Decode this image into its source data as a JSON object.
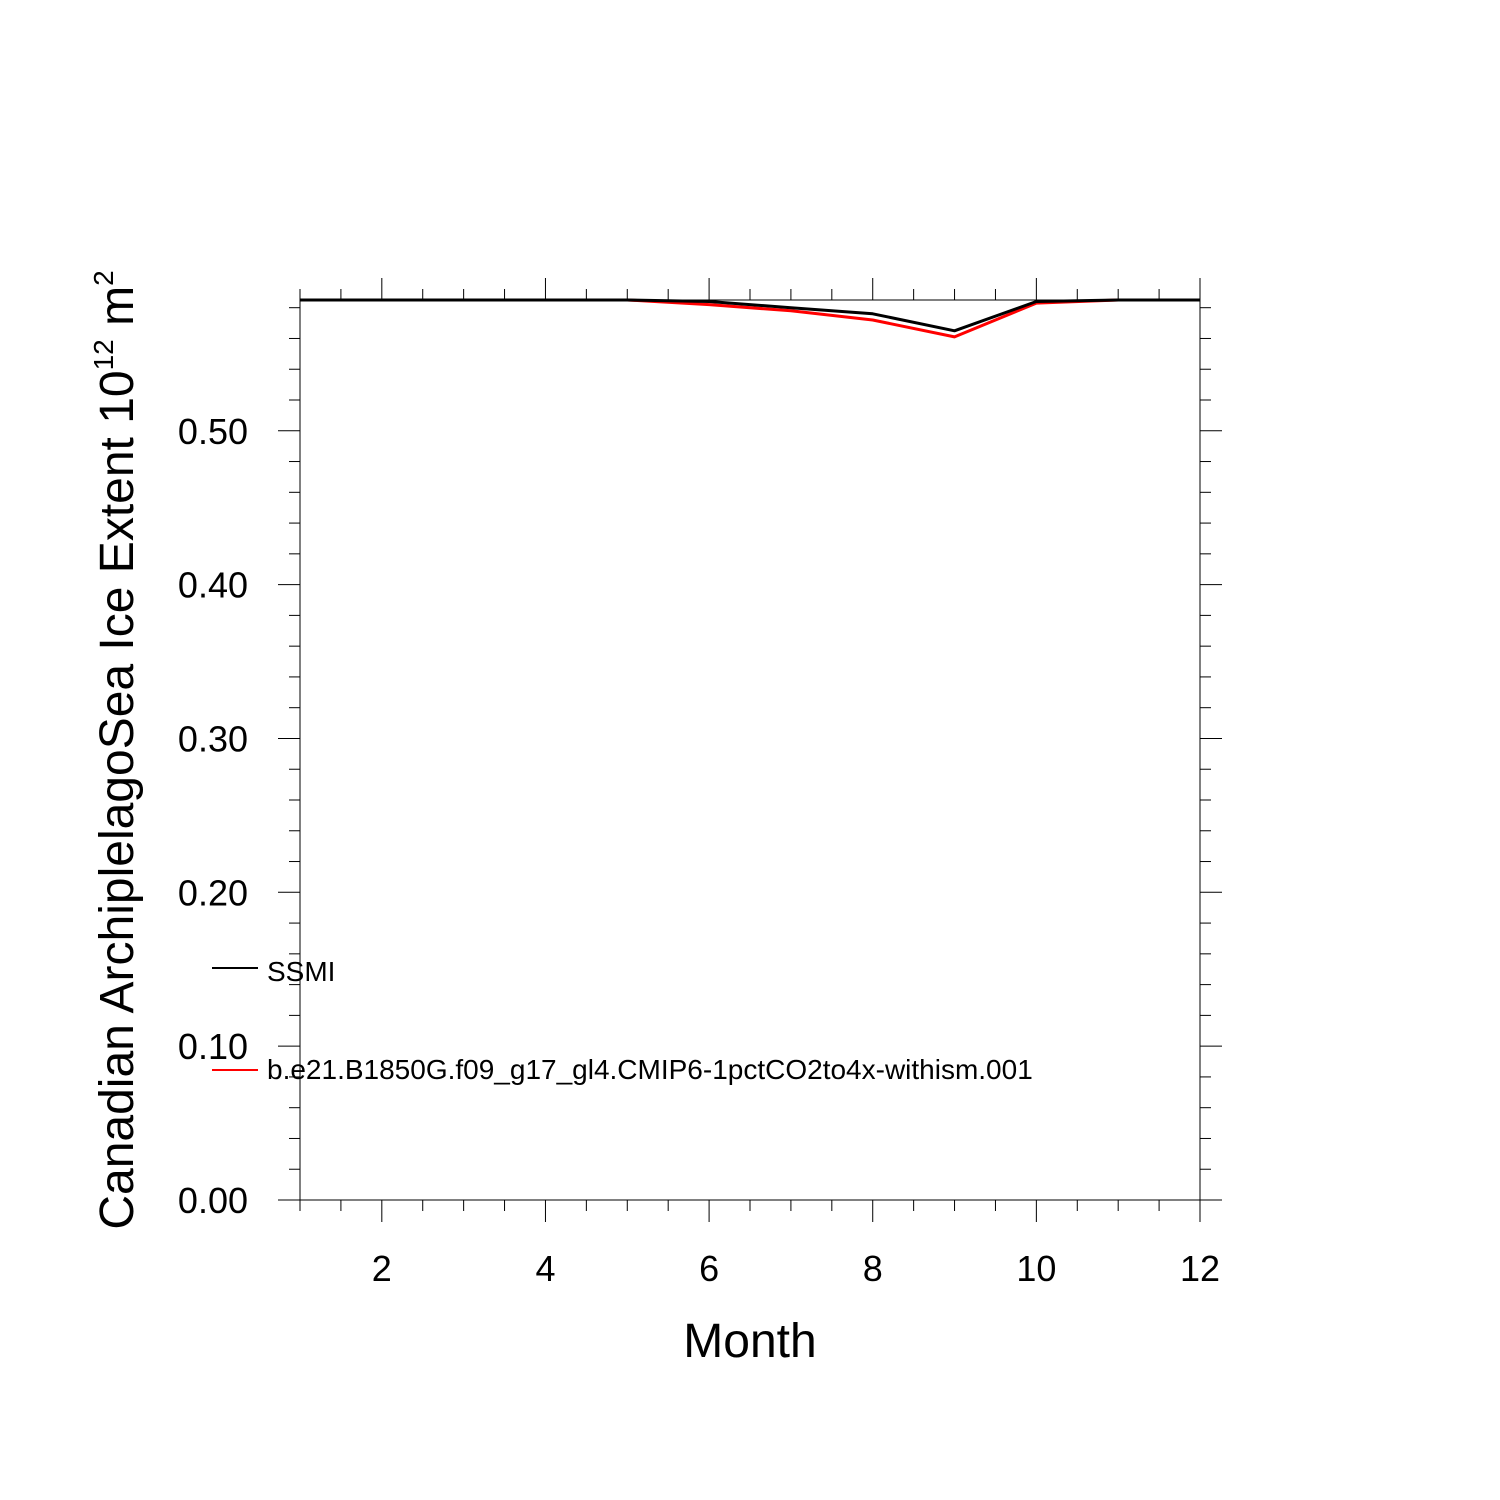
{
  "chart_data": {
    "type": "line",
    "xlabel": "Month",
    "ylabel": {
      "main": "Canadian ArchiplelagoSea Ice Extent 10",
      "exponent": "12",
      "unit": " m",
      "unit_exponent": "2"
    },
    "xlim": [
      1,
      12
    ],
    "ylim": [
      0,
      0.585
    ],
    "x_ticks": [
      2,
      4,
      6,
      8,
      10,
      12
    ],
    "x_tick_labels": [
      "2",
      "4",
      "6",
      "8",
      "10",
      "12"
    ],
    "y_ticks": [
      0,
      0.1,
      0.2,
      0.3,
      0.4,
      0.5
    ],
    "y_tick_labels": [
      "0.00",
      "0.10",
      "0.20",
      "0.30",
      "0.40",
      "0.50"
    ],
    "grid": false,
    "legend_position": "left-bottom",
    "x": [
      1,
      2,
      3,
      4,
      5,
      6,
      7,
      8,
      9,
      10,
      11,
      12
    ],
    "series": [
      {
        "name": "SSMI",
        "color": "#000000",
        "values": [
          0.585,
          0.585,
          0.585,
          0.585,
          0.585,
          0.584,
          0.58,
          0.576,
          0.565,
          0.584,
          0.585,
          0.585
        ]
      },
      {
        "name": "b.e21.B1850G.f09_g17_gl4.CMIP6-1pctCO2to4x-withism.001",
        "color": "#ff0000",
        "values": [
          0.585,
          0.585,
          0.585,
          0.585,
          0.585,
          0.582,
          0.578,
          0.572,
          0.561,
          0.583,
          0.585,
          0.585
        ]
      }
    ]
  }
}
